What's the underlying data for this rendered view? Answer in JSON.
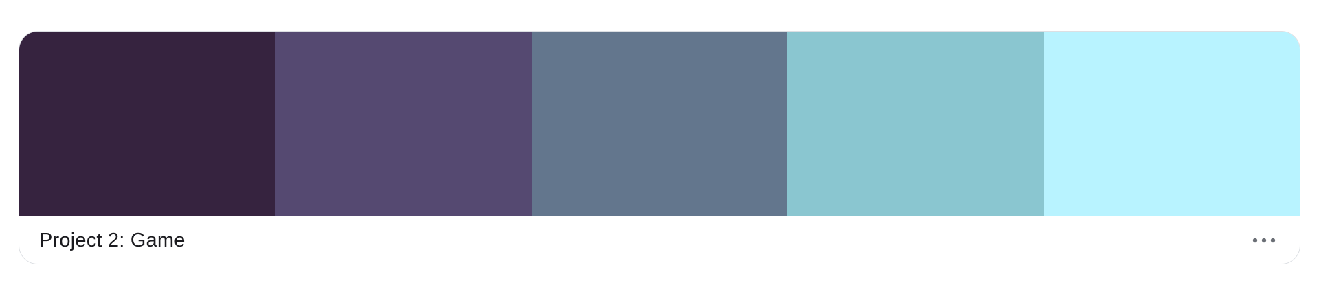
{
  "palette": {
    "name": "Project 2: Game",
    "colors": [
      "#36233f",
      "#554971",
      "#63768d",
      "#8ac6d0",
      "#b8f3ff"
    ]
  },
  "footer": {
    "more_icon": "more-horizontal-icon",
    "more_icon_color": "#6b6f76"
  }
}
